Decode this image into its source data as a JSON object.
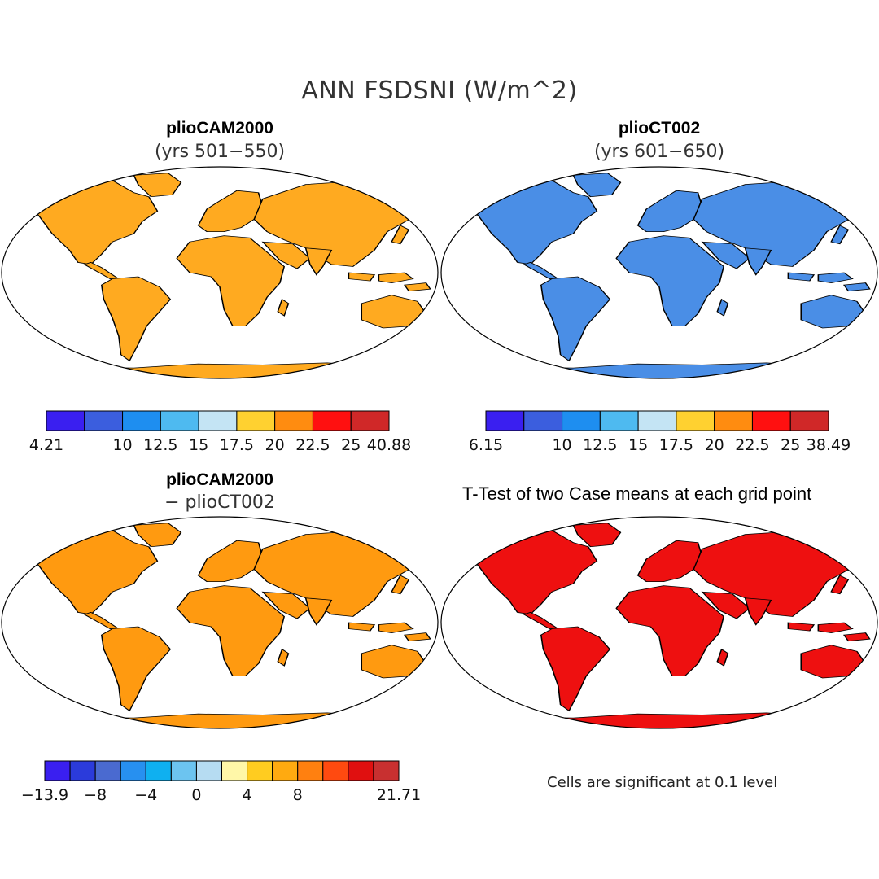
{
  "figure": {
    "title": "ANN FSDSNI (W/m^2)"
  },
  "panels": [
    {
      "title": "plioCAM2000",
      "subtitle": "(yrs 501−550)",
      "colorbar": {
        "colors": [
          "#3a1ff0",
          "#3b5ede",
          "#1e8ef0",
          "#4ebaf0",
          "#c4e4f4",
          "#ffd130",
          "#ff8c10",
          "#ff1010",
          "#d02828"
        ],
        "labels": [
          "4.21",
          "",
          "10",
          "12.5",
          "15",
          "17.5",
          "20",
          "22.5",
          "25",
          "40.88"
        ]
      }
    },
    {
      "title": "plioCT002",
      "subtitle": "(yrs 601−650)",
      "colorbar": {
        "colors": [
          "#3a1ff0",
          "#3b5ede",
          "#1e8ef0",
          "#4ebaf0",
          "#c4e4f4",
          "#ffd130",
          "#ff8c10",
          "#ff1010",
          "#d02828"
        ],
        "labels": [
          "6.15",
          "",
          "10",
          "12.5",
          "15",
          "17.5",
          "20",
          "22.5",
          "25",
          "38.49"
        ]
      }
    },
    {
      "title": "plioCAM2000",
      "subtitle": "− plioCT002",
      "colorbar": {
        "colors": [
          "#3a1ff0",
          "#2b3bdb",
          "#4a6ad0",
          "#2790f0",
          "#0fb0f0",
          "#6cc4f0",
          "#b6dcf2",
          "#fff7a8",
          "#ffcc20",
          "#ffaa10",
          "#ff8010",
          "#ff4a10",
          "#e01010",
          "#c83030"
        ],
        "labels": [
          "−13.9",
          "",
          "−8",
          "",
          "−4",
          "",
          "0",
          "",
          "4",
          "",
          "8",
          "",
          "",
          "",
          "21.71"
        ]
      }
    },
    {
      "title": "T-Test of two Case means at each grid point",
      "note": "Cells are significant at 0.1 level"
    }
  ],
  "map_colors": {
    "ocean": "#ffffff",
    "coast": "#000000",
    "significant": "#ee1010"
  }
}
